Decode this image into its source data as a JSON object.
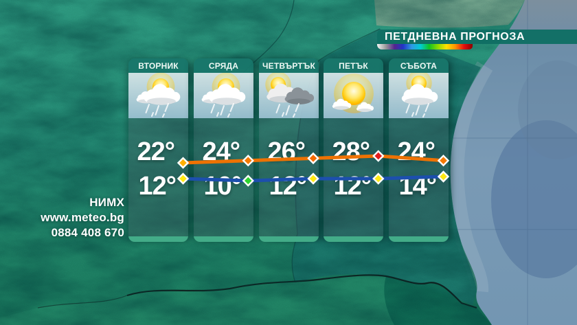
{
  "header": {
    "title": "ПЕТДНЕВНА ПРОГНОЗА"
  },
  "scale_bar_colors": [
    "#f5f5f5",
    "#9a9a9a",
    "#54248e",
    "#2136c6",
    "#2e9be4",
    "#00ccd4",
    "#12c222",
    "#8cdb00",
    "#ffe100",
    "#ff9300",
    "#e31010",
    "#8d0000"
  ],
  "contact": {
    "org": "НИМХ",
    "website": "www.meteo.bg",
    "phone": "0884 408 670"
  },
  "days": [
    {
      "label": "ВТОРНИК",
      "icon": "sun-behind-clouds-rain",
      "high": "22°",
      "low": "12°"
    },
    {
      "label": "СРЯДА",
      "icon": "sun-behind-clouds-rain",
      "high": "24°",
      "low": "10°"
    },
    {
      "label": "ЧЕТВЪРТЪК",
      "icon": "sun-behind-dark-clouds-rain",
      "high": "26°",
      "low": "12°"
    },
    {
      "label": "ПЕТЪК",
      "icon": "sun-with-small-clouds",
      "high": "28°",
      "low": "12°"
    },
    {
      "label": "СЪБОТА",
      "icon": "sun-behind-cloud-rain",
      "high": "24°",
      "low": "14°"
    }
  ],
  "chart_data": {
    "type": "line",
    "title": "ПЕТДНЕВНА ПРОГНОЗА",
    "categories": [
      "ВТОРНИК",
      "СРЯДА",
      "ЧЕТВЪРТЪК",
      "ПЕТЪК",
      "СЪБОТА"
    ],
    "unit": "°C",
    "legend": "none",
    "series": [
      {
        "name": "daily-high-temp",
        "values": [
          22,
          24,
          26,
          28,
          24
        ],
        "line_color": "#ee7203",
        "marker_colors": [
          "#ffb000",
          "#f57a00",
          "#f56a00",
          "#e41c1c",
          "#f57a00"
        ]
      },
      {
        "name": "daily-low-temp",
        "values": [
          12,
          10,
          12,
          12,
          14
        ],
        "line_color": "#1c4fae",
        "marker_colors": [
          "#ffe913",
          "#2fd32f",
          "#ffe913",
          "#ffe913",
          "#ffe913"
        ]
      }
    ]
  },
  "colors": {
    "header_bg": "#106e64",
    "card_header_bg": "#18766a",
    "card_footer_accent": "#43ac88",
    "land_teal": "#27947c",
    "dark_region": "#1d7d73",
    "sea": "#7a9ab5"
  }
}
